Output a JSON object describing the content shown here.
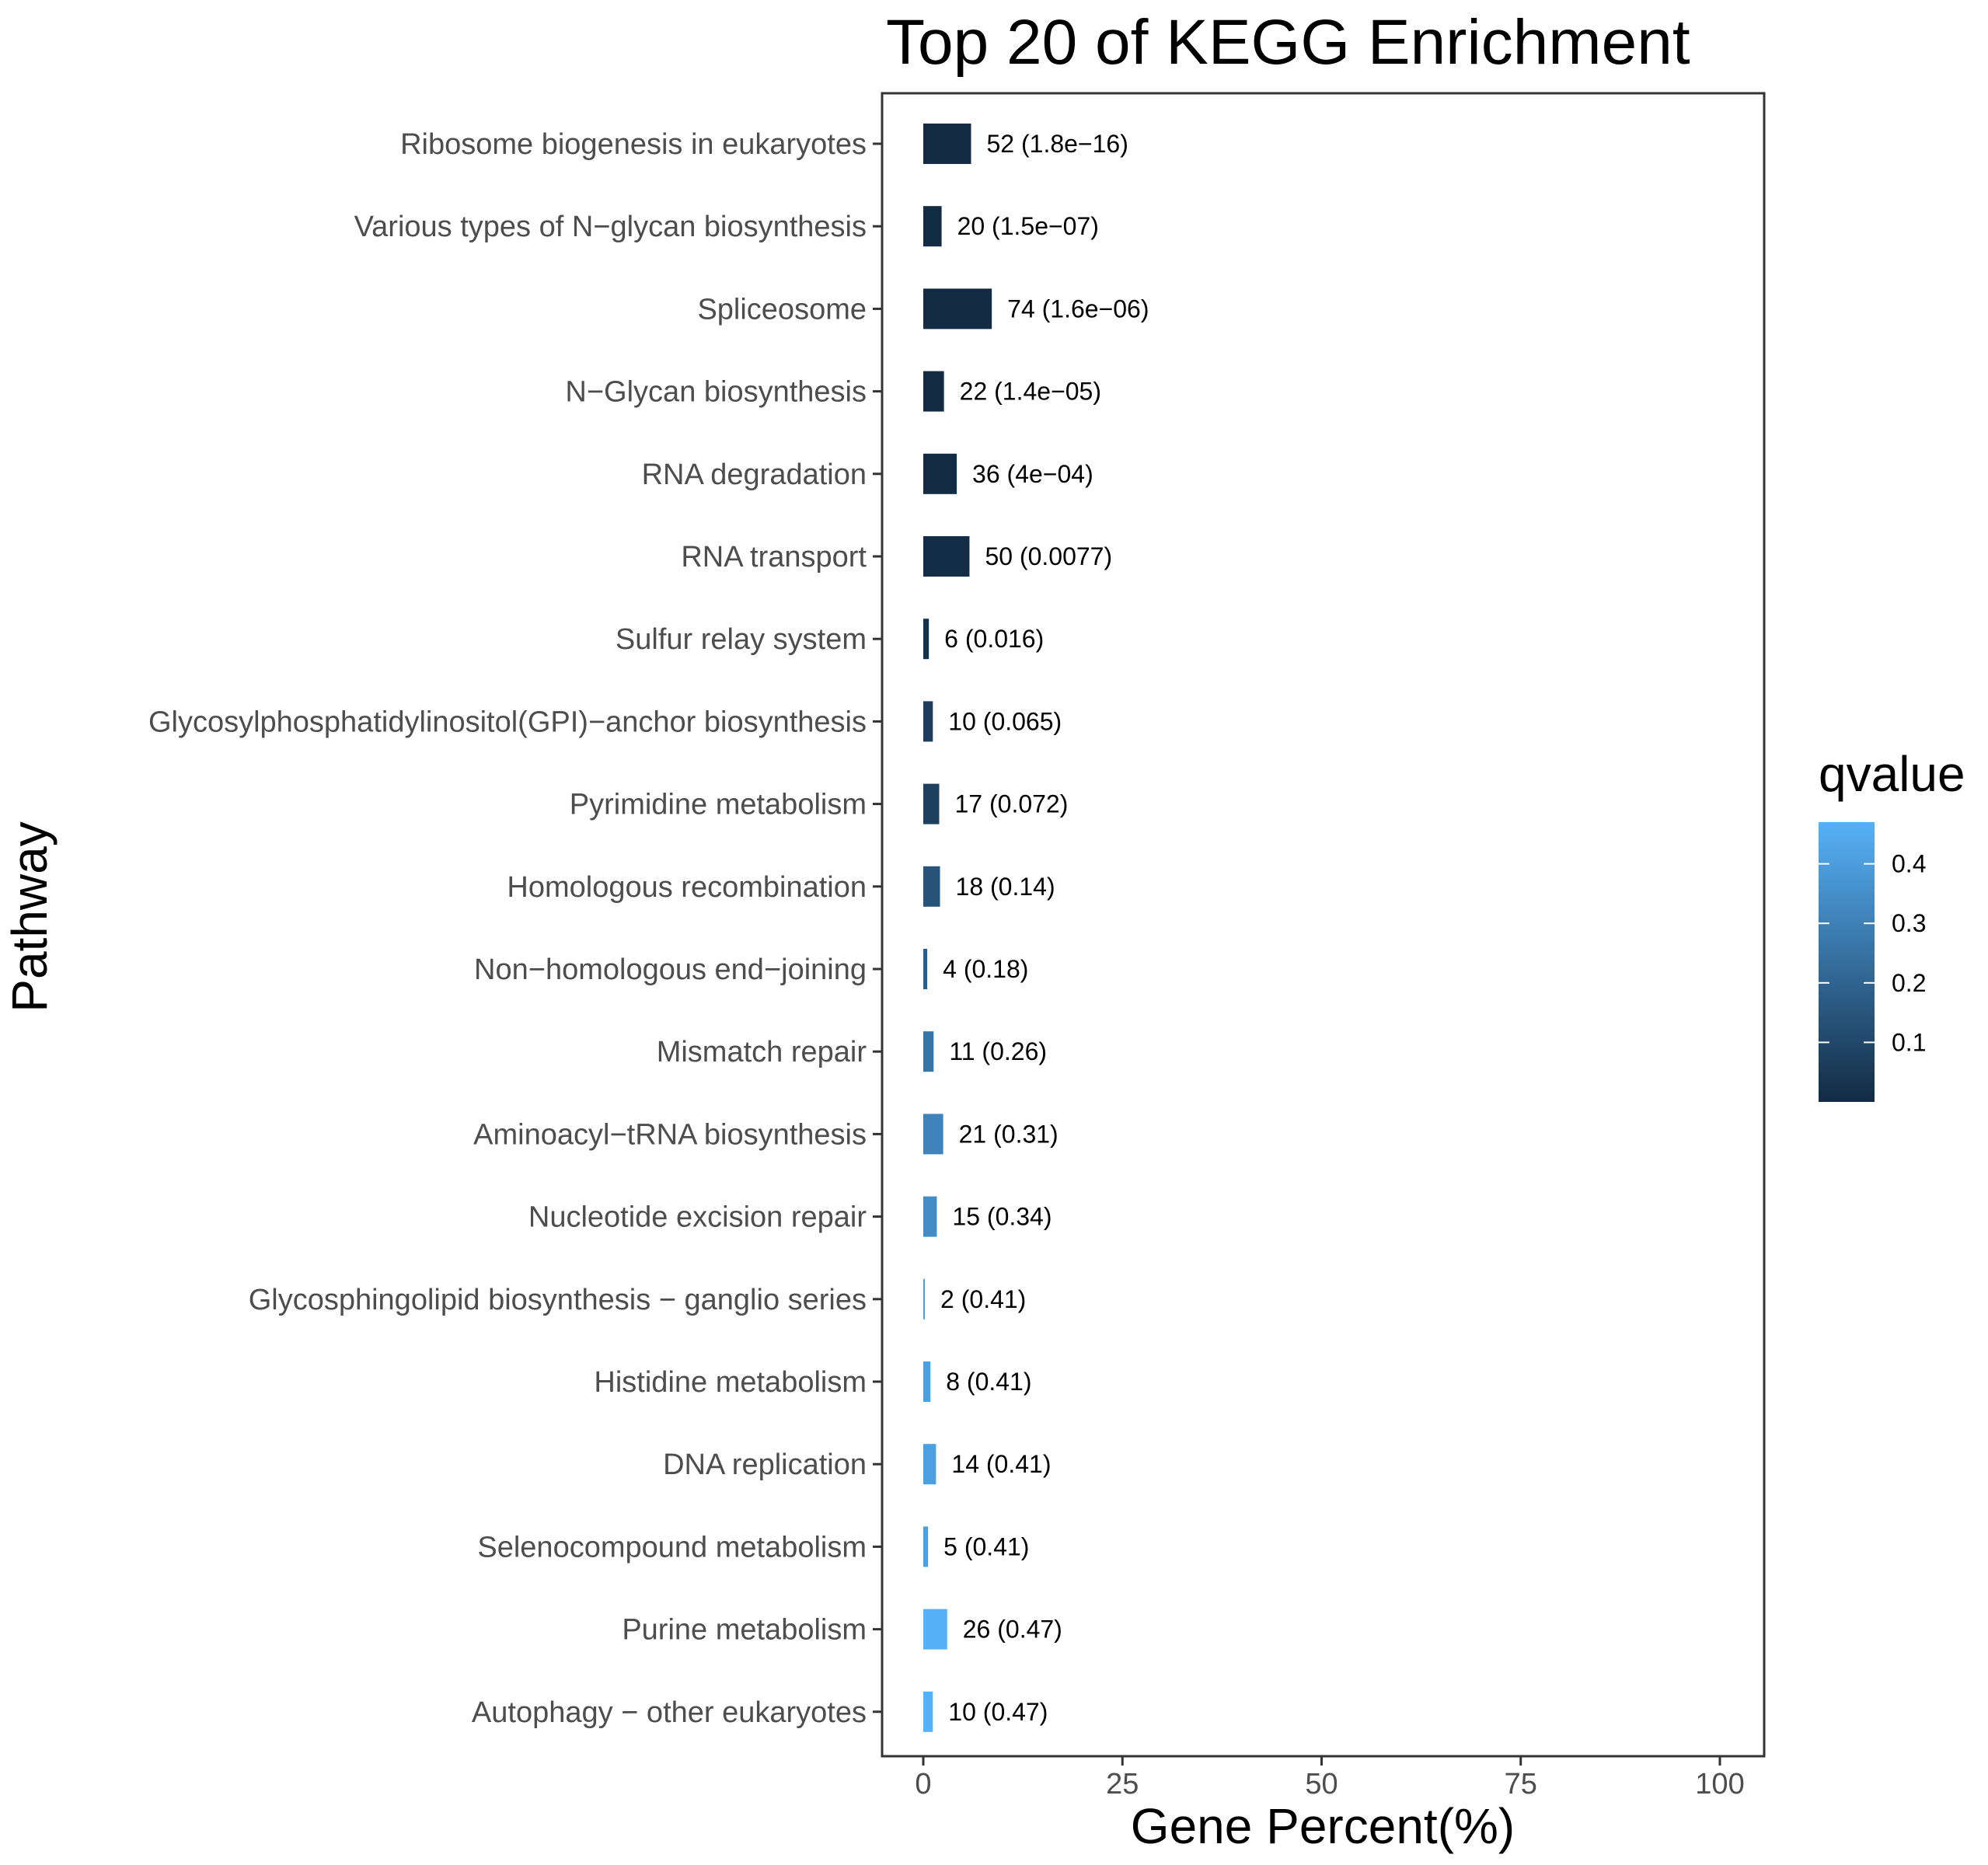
{
  "chart_data": {
    "type": "bar",
    "orientation": "horizontal",
    "title": "Top 20 of KEGG Enrichment",
    "xlabel": "Gene Percent(%)",
    "ylabel": "Pathway",
    "xlim": [
      0,
      100
    ],
    "xticks": [
      0,
      25,
      50,
      75,
      100
    ],
    "grid": false,
    "legend": {
      "title": "qvalue",
      "position": "right",
      "type": "colorbar",
      "ticks": [
        0.1,
        0.2,
        0.3,
        0.4
      ],
      "range": [
        0.0,
        0.47
      ],
      "color_low": "#132B43",
      "color_high": "#56B1F7"
    },
    "categories": [
      "Ribosome biogenesis in eukaryotes",
      "Various types of N−glycan biosynthesis",
      "Spliceosome",
      "N−Glycan biosynthesis",
      "RNA degradation",
      "RNA transport",
      "Sulfur relay system",
      "Glycosylphosphatidylinositol(GPI)−anchor biosynthesis",
      "Pyrimidine metabolism",
      "Homologous recombination",
      "Non−homologous end−joining",
      "Mismatch repair",
      "Aminoacyl−tRNA biosynthesis",
      "Nucleotide excision repair",
      "Glycosphingolipid biosynthesis − ganglio series",
      "Histidine metabolism",
      "DNA replication",
      "Selenocompound metabolism",
      "Purine metabolism",
      "Autophagy − other eukaryotes"
    ],
    "values": [
      6.0,
      2.3,
      8.6,
      2.6,
      4.2,
      5.8,
      0.7,
      1.2,
      2.0,
      2.1,
      0.5,
      1.3,
      2.5,
      1.7,
      0.2,
      0.9,
      1.6,
      0.6,
      3.0,
      1.2
    ],
    "qvalues": [
      1.8e-16,
      1.5e-07,
      1.6e-06,
      1.4e-05,
      0.0004,
      0.0077,
      0.016,
      0.065,
      0.072,
      0.14,
      0.18,
      0.26,
      0.31,
      0.34,
      0.41,
      0.41,
      0.41,
      0.41,
      0.47,
      0.47
    ],
    "bar_labels": [
      "52 (1.8e−16)",
      "20 (1.5e−07)",
      "74 (1.6e−06)",
      "22 (1.4e−05)",
      "36 (4e−04)",
      "50 (0.0077)",
      "6 (0.016)",
      "10 (0.065)",
      "17 (0.072)",
      "18 (0.14)",
      "4 (0.18)",
      "11 (0.26)",
      "21 (0.31)",
      "15 (0.34)",
      "2 (0.41)",
      "8 (0.41)",
      "14 (0.41)",
      "5 (0.41)",
      "26 (0.47)",
      "10 (0.47)"
    ]
  }
}
